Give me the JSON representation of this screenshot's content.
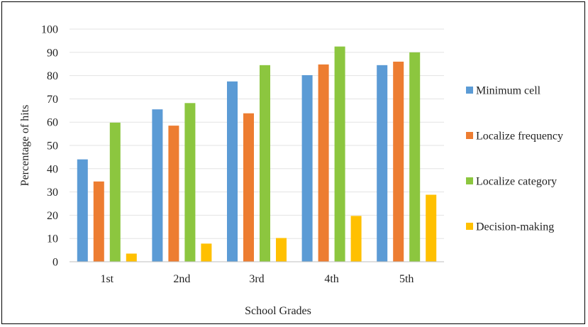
{
  "chart_data": {
    "type": "bar",
    "title": "",
    "xlabel": "School Grades",
    "ylabel": "Percentage of hits",
    "ylim": [
      0,
      100
    ],
    "yticks": [
      0,
      10,
      20,
      30,
      40,
      50,
      60,
      70,
      80,
      90,
      100
    ],
    "grid": true,
    "legend_position": "right",
    "categories": [
      "1st",
      "2nd",
      "3rd",
      "4th",
      "5th"
    ],
    "series": [
      {
        "name": "Minimum cell",
        "color": "#5B9BD5",
        "values": [
          44,
          65.5,
          77.5,
          80.2,
          84.5
        ]
      },
      {
        "name": "Localize frequency",
        "color": "#ED7D31",
        "values": [
          34.5,
          58.5,
          63.8,
          84.8,
          86
        ]
      },
      {
        "name": "Localize category",
        "color": "#8CC63F",
        "values": [
          59.8,
          68.2,
          84.5,
          92.5,
          90
        ]
      },
      {
        "name": "Decision-making",
        "color": "#FFC000",
        "values": [
          3.5,
          7.8,
          10.2,
          19.7,
          28.8
        ]
      }
    ]
  }
}
